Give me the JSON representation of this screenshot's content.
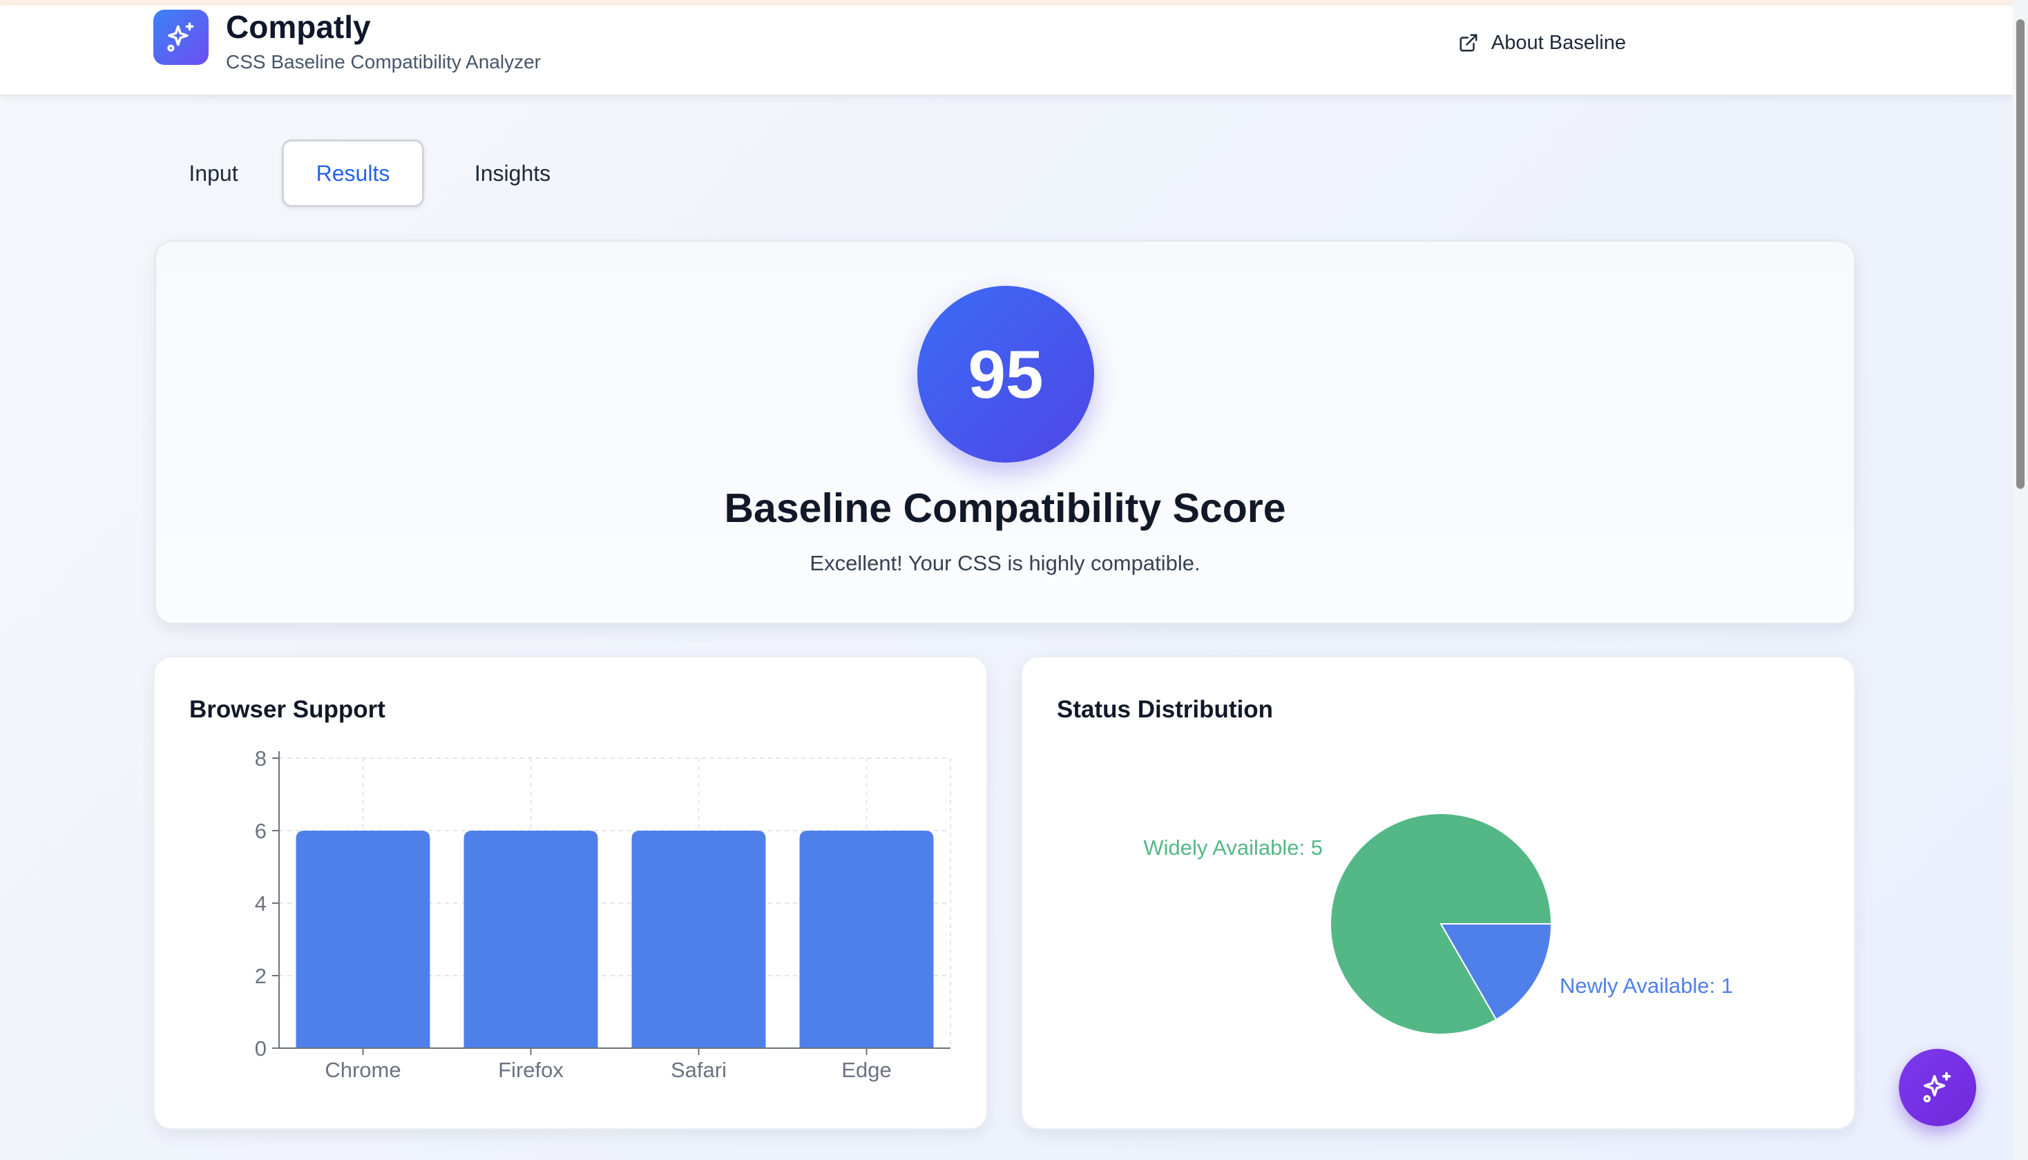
{
  "app": {
    "title": "Compatly",
    "subtitle": "CSS Baseline Compatibility Analyzer",
    "logo_icon": "sparkles-icon"
  },
  "header": {
    "about_label": "About Baseline",
    "about_icon": "external-link-icon"
  },
  "tabs": [
    {
      "label": "Input",
      "active": false
    },
    {
      "label": "Results",
      "active": true
    },
    {
      "label": "Insights",
      "active": false
    }
  ],
  "score": {
    "value": "95",
    "title": "Baseline Compatibility Score",
    "message": "Excellent! Your CSS is highly compatible."
  },
  "browser_support": {
    "title": "Browser Support"
  },
  "status_distribution": {
    "title": "Status Distribution"
  },
  "colors": {
    "accent": "#2563eb",
    "bar": "#4f80ea",
    "widely_available": "#53b886",
    "newly_available": "#4f80ea",
    "fab": "#7c3aed"
  },
  "fab": {
    "icon": "sparkles-icon"
  },
  "chart_data": [
    {
      "type": "bar",
      "title": "Browser Support",
      "categories": [
        "Chrome",
        "Firefox",
        "Safari",
        "Edge"
      ],
      "values": [
        6,
        6,
        6,
        6
      ],
      "yticks": [
        "0",
        "2",
        "4",
        "6",
        "8"
      ],
      "ylim": [
        0,
        8
      ],
      "grid": true
    },
    {
      "type": "pie",
      "title": "Status Distribution",
      "labels": [
        "Widely Available",
        "Newly Available"
      ],
      "values": [
        5,
        1
      ],
      "slice_labels": [
        "Widely Available: 5",
        "Newly Available: 1"
      ]
    }
  ]
}
